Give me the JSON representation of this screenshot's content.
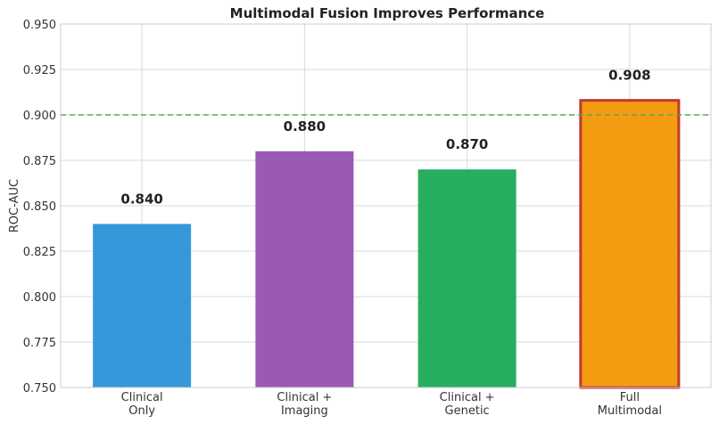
{
  "chart_data": {
    "type": "bar",
    "title": "Multimodal Fusion Improves Performance",
    "xlabel": "",
    "ylabel": "ROC-AUC",
    "categories": [
      [
        "Clinical",
        "Only"
      ],
      [
        "Clinical +",
        "Imaging"
      ],
      [
        "Clinical +",
        "Genetic"
      ],
      [
        "Full",
        "Multimodal"
      ]
    ],
    "values": [
      0.84,
      0.88,
      0.87,
      0.908
    ],
    "value_labels": [
      "0.840",
      "0.880",
      "0.870",
      "0.908"
    ],
    "bar_colors": [
      "#3498db",
      "#9b59b6",
      "#27ae60",
      "#f39c12"
    ],
    "highlight_index": 3,
    "highlight_edge_color": "#c0392b",
    "ylim": [
      0.75,
      0.95
    ],
    "yticks": [
      "0.750",
      "0.775",
      "0.800",
      "0.825",
      "0.850",
      "0.875",
      "0.900",
      "0.925",
      "0.950"
    ],
    "ytick_values": [
      0.75,
      0.775,
      0.8,
      0.825,
      0.85,
      0.875,
      0.9,
      0.925,
      0.95
    ],
    "reference_line": {
      "value": 0.9,
      "color": "#5aa85a",
      "style": "dashed"
    },
    "grid": true
  }
}
